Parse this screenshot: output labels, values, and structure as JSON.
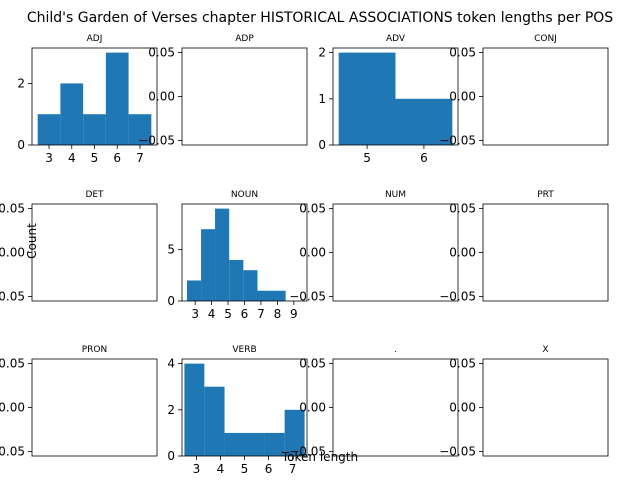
{
  "chart_data": {
    "title": "Child's Garden of Verses chapter HISTORICAL ASSOCIATIONS token lengths per POS",
    "xlabel": "Token length",
    "ylabel": "Count",
    "type": "bar",
    "grid": false,
    "panels": [
      {
        "name": "ADJ",
        "empty": false,
        "xlim": [
          2.25,
          7.75
        ],
        "ylim": [
          0,
          3.15
        ],
        "xticks": [
          3,
          4,
          5,
          6,
          7
        ],
        "yticks": [
          0,
          2
        ],
        "bins": [
          {
            "x0": 2.5,
            "x1": 3.5,
            "count": 1
          },
          {
            "x0": 3.5,
            "x1": 4.5,
            "count": 2
          },
          {
            "x0": 4.5,
            "x1": 5.5,
            "count": 1
          },
          {
            "x0": 5.5,
            "x1": 6.5,
            "count": 3
          },
          {
            "x0": 6.5,
            "x1": 7.5,
            "count": 1
          }
        ]
      },
      {
        "name": "ADP",
        "empty": true,
        "ylim": [
          -0.055,
          0.055
        ],
        "yticks": [
          0.05,
          0.0,
          -0.05
        ],
        "ytick_labels": [
          "0.05",
          "0.00",
          "−0.05"
        ]
      },
      {
        "name": "ADV",
        "empty": false,
        "xlim": [
          4.4,
          6.6
        ],
        "ylim": [
          0,
          2.1
        ],
        "xticks": [
          5,
          6
        ],
        "yticks": [
          0,
          1,
          2
        ],
        "bins": [
          {
            "x0": 4.5,
            "x1": 5.5,
            "count": 2
          },
          {
            "x0": 5.5,
            "x1": 6.5,
            "count": 1
          }
        ]
      },
      {
        "name": "CONJ",
        "empty": true,
        "ylim": [
          -0.055,
          0.055
        ],
        "yticks": [
          0.05,
          0.0,
          -0.05
        ],
        "ytick_labels": [
          "0.05",
          "0.00",
          "−0.05"
        ]
      },
      {
        "name": "DET",
        "empty": true,
        "ylim": [
          -0.055,
          0.055
        ],
        "yticks": [
          0.05,
          0.0,
          -0.05
        ],
        "ytick_labels": [
          "0.05",
          "0.00",
          "−0.05"
        ]
      },
      {
        "name": "NOUN",
        "empty": false,
        "xlim": [
          2.2,
          9.8
        ],
        "ylim": [
          0,
          9.45
        ],
        "xticks": [
          3,
          4,
          5,
          6,
          7,
          8,
          9
        ],
        "yticks": [
          0,
          5
        ],
        "bins": [
          {
            "x0": 2.5,
            "x1": 3.36,
            "count": 2
          },
          {
            "x0": 3.36,
            "x1": 4.21,
            "count": 7
          },
          {
            "x0": 4.21,
            "x1": 5.07,
            "count": 9
          },
          {
            "x0": 5.07,
            "x1": 5.93,
            "count": 4
          },
          {
            "x0": 5.93,
            "x1": 6.79,
            "count": 3
          },
          {
            "x0": 6.79,
            "x1": 7.64,
            "count": 1
          },
          {
            "x0": 7.64,
            "x1": 8.5,
            "count": 1
          }
        ]
      },
      {
        "name": "NUM",
        "empty": true,
        "ylim": [
          -0.055,
          0.055
        ],
        "yticks": [
          0.05,
          0.0,
          -0.05
        ],
        "ytick_labels": [
          "0.05",
          "0.00",
          "−0.05"
        ]
      },
      {
        "name": "PRT",
        "empty": true,
        "ylim": [
          -0.055,
          0.055
        ],
        "yticks": [
          0.05,
          0.0,
          -0.05
        ],
        "ytick_labels": [
          "0.05",
          "0.00",
          "−0.05"
        ]
      },
      {
        "name": "PRON",
        "empty": true,
        "ylim": [
          -0.055,
          0.055
        ],
        "yticks": [
          0.05,
          0.0,
          -0.05
        ],
        "ytick_labels": [
          "0.05",
          "0.00",
          "−0.05"
        ]
      },
      {
        "name": "VERB",
        "empty": false,
        "xlim": [
          2.4,
          7.6
        ],
        "ylim": [
          0,
          4.2
        ],
        "xticks": [
          3,
          4,
          5,
          6,
          7
        ],
        "yticks": [
          0,
          2,
          4
        ],
        "bins": [
          {
            "x0": 2.5,
            "x1": 3.33,
            "count": 4
          },
          {
            "x0": 3.33,
            "x1": 4.17,
            "count": 3
          },
          {
            "x0": 4.17,
            "x1": 5.0,
            "count": 1
          },
          {
            "x0": 5.0,
            "x1": 5.83,
            "count": 1
          },
          {
            "x0": 5.83,
            "x1": 6.67,
            "count": 1
          },
          {
            "x0": 6.67,
            "x1": 7.5,
            "count": 2
          }
        ]
      },
      {
        "name": ".",
        "empty": true,
        "ylim": [
          -0.055,
          0.055
        ],
        "yticks": [
          0.05,
          0.0,
          -0.05
        ],
        "ytick_labels": [
          "0.05",
          "0.00",
          "−0.05"
        ]
      },
      {
        "name": "X",
        "empty": true,
        "ylim": [
          -0.055,
          0.055
        ],
        "yticks": [
          0.05,
          0.0,
          -0.05
        ],
        "ytick_labels": [
          "0.05",
          "0.00",
          "−0.05"
        ]
      }
    ]
  }
}
